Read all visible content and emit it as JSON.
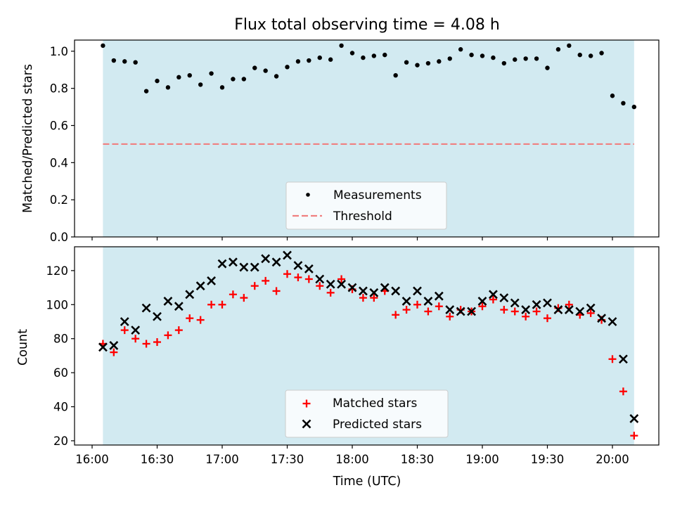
{
  "title": "Flux total observing time = 4.08 h",
  "xlabel": "Time (UTC)",
  "colors": {
    "shade": "#add8e6",
    "measurement": "#000000",
    "threshold": "#f08080",
    "matched": "#ff0000",
    "predicted": "#000000"
  },
  "chart_data": [
    {
      "type": "scatter",
      "ylabel": "Matched/Predicted stars",
      "ylim": [
        0,
        1.06
      ],
      "yticks": [
        "0.0",
        "0.2",
        "0.4",
        "0.6",
        "0.8",
        "1.0"
      ],
      "shaded_interval": [
        "16:05",
        "20:10"
      ],
      "threshold": 0.5,
      "legend": {
        "placement": "lower-center",
        "entries": [
          "Measurements",
          "Threshold"
        ]
      },
      "series": [
        {
          "name": "Measurements",
          "x": [
            "16:05",
            "16:10",
            "16:15",
            "16:20",
            "16:25",
            "16:30",
            "16:35",
            "16:40",
            "16:45",
            "16:50",
            "16:55",
            "17:00",
            "17:05",
            "17:10",
            "17:15",
            "17:20",
            "17:25",
            "17:30",
            "17:35",
            "17:40",
            "17:45",
            "17:50",
            "17:55",
            "18:00",
            "18:05",
            "18:10",
            "18:15",
            "18:20",
            "18:25",
            "18:30",
            "18:35",
            "18:40",
            "18:45",
            "18:50",
            "18:55",
            "19:00",
            "19:05",
            "19:10",
            "19:15",
            "19:20",
            "19:25",
            "19:30",
            "19:35",
            "19:40",
            "19:45",
            "19:50",
            "19:55",
            "20:00",
            "20:05",
            "20:10"
          ],
          "values": [
            1.03,
            0.95,
            0.945,
            0.94,
            0.785,
            0.84,
            0.805,
            0.86,
            0.87,
            0.82,
            0.88,
            0.805,
            0.85,
            0.85,
            0.91,
            0.895,
            0.865,
            0.915,
            0.945,
            0.95,
            0.965,
            0.955,
            1.03,
            0.99,
            0.965,
            0.975,
            0.98,
            0.87,
            0.94,
            0.925,
            0.935,
            0.945,
            0.96,
            1.01,
            0.98,
            0.975,
            0.965,
            0.935,
            0.955,
            0.96,
            0.96,
            0.91,
            1.01,
            1.03,
            0.98,
            0.975,
            0.99,
            0.76,
            0.72,
            0.7
          ]
        }
      ]
    },
    {
      "type": "scatter",
      "ylabel": "Count",
      "ylim": [
        17.5,
        134
      ],
      "yticks": [
        "20",
        "40",
        "60",
        "80",
        "100",
        "120"
      ],
      "xticks": [
        "16:00",
        "16:30",
        "17:00",
        "17:30",
        "18:00",
        "18:30",
        "19:00",
        "19:30",
        "20:00"
      ],
      "shaded_interval": [
        "16:05",
        "20:10"
      ],
      "legend": {
        "placement": "lower-center",
        "entries": [
          "Matched stars",
          "Predicted stars"
        ]
      },
      "x": [
        "16:05",
        "16:10",
        "16:15",
        "16:20",
        "16:25",
        "16:30",
        "16:35",
        "16:40",
        "16:45",
        "16:50",
        "16:55",
        "17:00",
        "17:05",
        "17:10",
        "17:15",
        "17:20",
        "17:25",
        "17:30",
        "17:35",
        "17:40",
        "17:45",
        "17:50",
        "17:55",
        "18:00",
        "18:05",
        "18:10",
        "18:15",
        "18:20",
        "18:25",
        "18:30",
        "18:35",
        "18:40",
        "18:45",
        "18:50",
        "18:55",
        "19:00",
        "19:05",
        "19:10",
        "19:15",
        "19:20",
        "19:25",
        "19:30",
        "19:35",
        "19:40",
        "19:45",
        "19:50",
        "19:55",
        "20:00",
        "20:05",
        "20:10"
      ],
      "series": [
        {
          "name": "Matched stars",
          "values": [
            77,
            72,
            85,
            80,
            77,
            78,
            82,
            85,
            92,
            91,
            100,
            100,
            106,
            104,
            111,
            114,
            108,
            118,
            116,
            115,
            111,
            107,
            115,
            109,
            104,
            104,
            108,
            94,
            97,
            100,
            96,
            99,
            93,
            97,
            96,
            99,
            103,
            97,
            96,
            93,
            96,
            92,
            98,
            100,
            94,
            95,
            91,
            68,
            49,
            23
          ]
        },
        {
          "name": "Predicted stars",
          "values": [
            75,
            76,
            90,
            85,
            98,
            93,
            102,
            99,
            106,
            111,
            114,
            124,
            125,
            122,
            122,
            127,
            125,
            129,
            123,
            121,
            115,
            112,
            112,
            110,
            108,
            107,
            110,
            108,
            102,
            108,
            102,
            105,
            97,
            96,
            96,
            102,
            106,
            104,
            101,
            97,
            100,
            101,
            97,
            97,
            96,
            98,
            92,
            90,
            68,
            33
          ]
        }
      ]
    }
  ]
}
